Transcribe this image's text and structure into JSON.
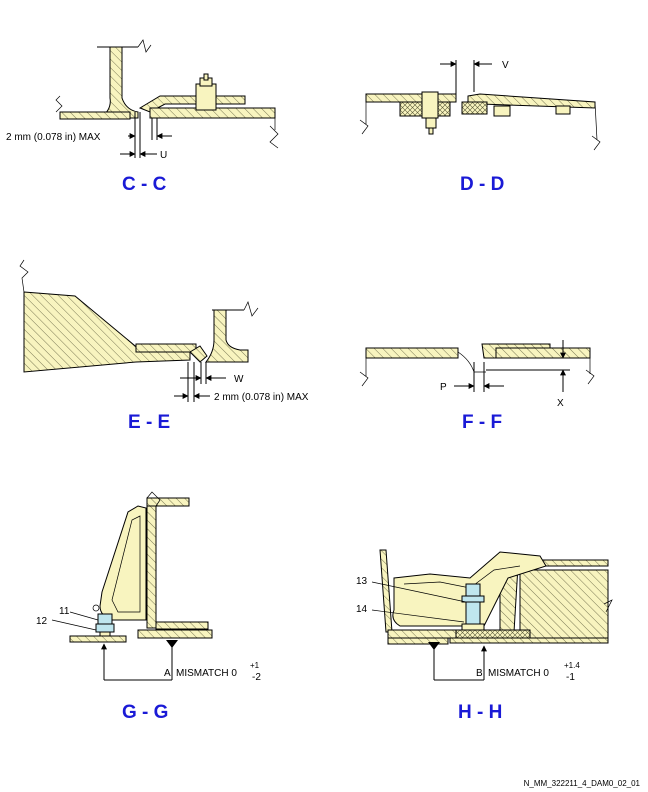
{
  "sections": {
    "cc": {
      "title": "C - C",
      "dim_gap": "2 mm (0.078 in) MAX",
      "dim_letter": "U"
    },
    "dd": {
      "title": "D - D",
      "dim_letter": "V"
    },
    "ee": {
      "title": "E - E",
      "dim_letter": "W",
      "dim_gap": "2 mm (0.078 in) MAX"
    },
    "ff": {
      "title": "F - F",
      "dim_p": "P",
      "dim_x": "X"
    },
    "gg": {
      "title": "G - G",
      "item_11": "11",
      "item_12": "12",
      "datum": "A",
      "mismatch": "MISMATCH 0",
      "tol_upper": "+1",
      "tol_lower": "-2"
    },
    "hh": {
      "title": "H - H",
      "item_13": "13",
      "item_14": "14",
      "datum": "B",
      "mismatch": "MISMATCH 0",
      "tol_upper": "+1.4",
      "tol_lower": "-1"
    }
  },
  "footer": {
    "drawing_ref": "N_MM_322211_4_DAM0_02_01"
  },
  "colors": {
    "title": "#1a1ad6",
    "part_fill": "#f8f4bf",
    "fastener_blue": "#bfe6ee",
    "hatch": "#5a5a3a"
  }
}
